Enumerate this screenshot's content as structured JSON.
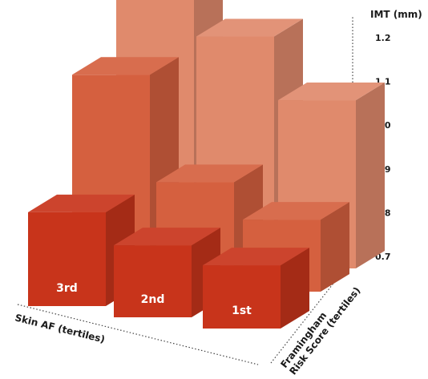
{
  "chart_data": {
    "type": "bar",
    "subtype": "3d-grouped",
    "title": "",
    "zlabel": "IMT (mm)",
    "xlabel": "Skin AF (tertiles)",
    "ylabel_lines": [
      "Framingham",
      "Risk Score (tertiles)"
    ],
    "z_ticks": [
      "1.2",
      "1.1",
      "1.0",
      "0.9",
      "0.8",
      "0.7"
    ],
    "skin_af_tertiles": [
      "1st",
      "2nd",
      "3rd"
    ],
    "framingham_tertiles": [
      "1st",
      "2nd",
      "3rd"
    ],
    "values": [
      {
        "skin_af": "3rd",
        "framingham": "3rd",
        "imt": 1.24
      },
      {
        "skin_af": "3rd",
        "framingham": "2nd",
        "imt": 1.02
      },
      {
        "skin_af": "3rd",
        "framingham": "1st",
        "imt": 0.79
      },
      {
        "skin_af": "2nd",
        "framingham": "3rd",
        "imt": 1.08
      },
      {
        "skin_af": "2nd",
        "framingham": "2nd",
        "imt": 0.8
      },
      {
        "skin_af": "2nd",
        "framingham": "1st",
        "imt": 0.74
      },
      {
        "skin_af": "1st",
        "framingham": "3rd",
        "imt": 0.96
      },
      {
        "skin_af": "1st",
        "framingham": "2nd",
        "imt": 0.74
      },
      {
        "skin_af": "1st",
        "framingham": "1st",
        "imt": 0.72
      }
    ],
    "colors": {
      "3rd": "#e08a6c",
      "2nd": "#d5603f",
      "1st": "#c8341b"
    }
  }
}
